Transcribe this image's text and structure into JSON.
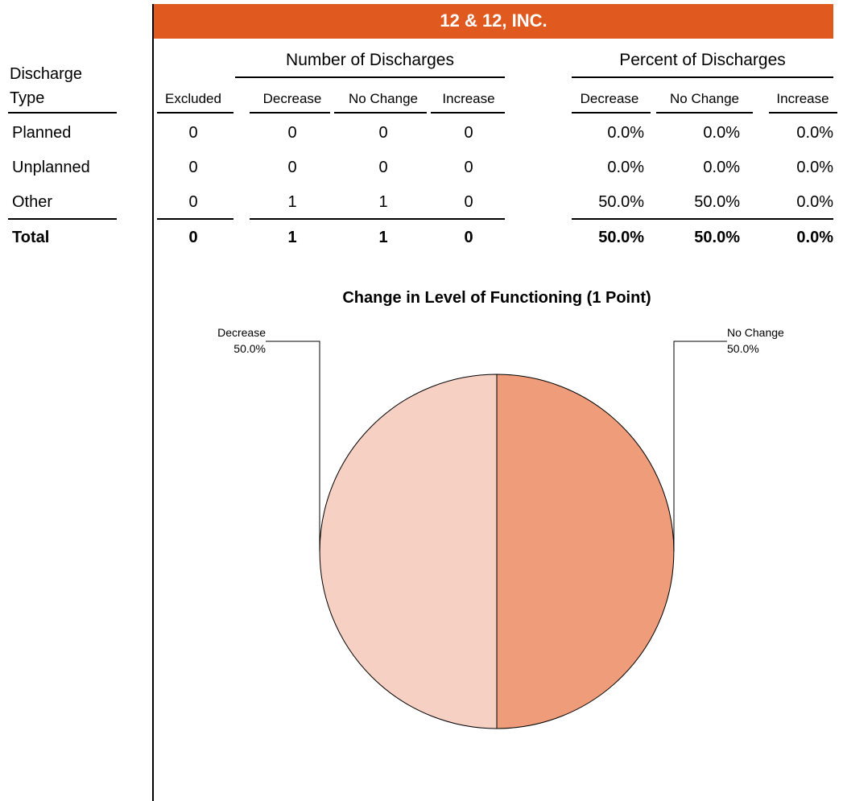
{
  "header": {
    "title": "12 & 12, INC."
  },
  "table": {
    "row_header": [
      "Discharge",
      "Type"
    ],
    "groups": [
      "Number of Discharges",
      "Percent of Discharges"
    ],
    "columns": [
      "Excluded",
      "Decrease",
      "No Change",
      "Increase",
      "Decrease",
      "No Change",
      "Increase"
    ],
    "rows": [
      [
        "Planned",
        "0",
        "0",
        "0",
        "0",
        "0.0%",
        "0.0%",
        "0.0%"
      ],
      [
        "Unplanned",
        "0",
        "0",
        "0",
        "0",
        "0.0%",
        "0.0%",
        "0.0%"
      ],
      [
        "Other",
        "0",
        "1",
        "1",
        "0",
        "50.0%",
        "50.0%",
        "0.0%"
      ]
    ],
    "total": [
      "Total",
      "0",
      "1",
      "1",
      "0",
      "50.0%",
      "50.0%",
      "0.0%"
    ]
  },
  "chart_data": {
    "type": "pie",
    "title": "Change in Level of Functioning (1 Point)",
    "categories": [
      "Decrease",
      "No Change"
    ],
    "values": [
      50,
      50
    ],
    "value_labels": [
      "50.0%",
      "50.0%"
    ],
    "colors": [
      "#f6d0c3",
      "#ee9c79"
    ]
  }
}
